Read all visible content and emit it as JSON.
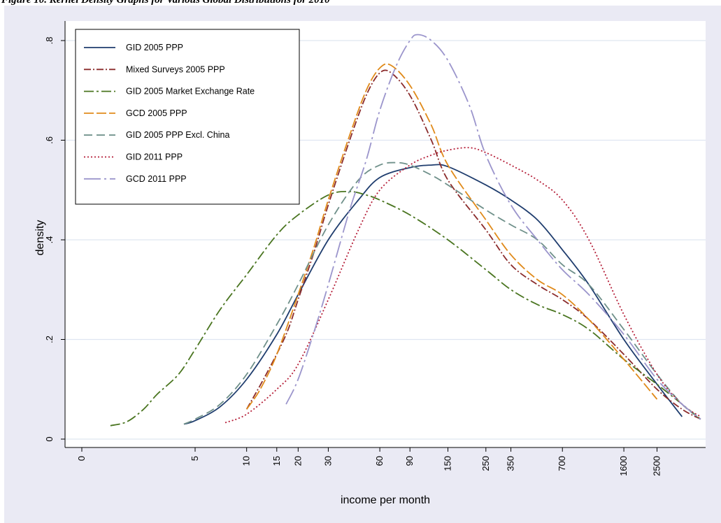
{
  "caption": "Figure 10. Kernel Density Graphs for Various Global Distributions for 2010",
  "chart_data": {
    "type": "line",
    "title": "",
    "xlabel": "income per month",
    "ylabel": "density",
    "x_scale": "log",
    "x_ticks": [
      "0",
      "5",
      "10",
      "15",
      "20",
      "30",
      "60",
      "90",
      "150",
      "250",
      "350",
      "700",
      "1600",
      "2500"
    ],
    "y_ticks": [
      "0",
      ".2",
      ".4",
      ".6",
      ".8"
    ],
    "ylim": [
      0,
      0.8
    ],
    "grid": "horizontal",
    "legend_position": "top-left",
    "series": [
      {
        "name": "GID 2005 PPP",
        "color": "#1f3d6e",
        "dash": "solid",
        "x": [
          4.3,
          5,
          7,
          10,
          15,
          20,
          30,
          45,
          60,
          90,
          120,
          150,
          250,
          350,
          500,
          700,
          1000,
          1600,
          2500,
          3500
        ],
        "y": [
          0.03,
          0.037,
          0.065,
          0.12,
          0.21,
          0.29,
          0.4,
          0.48,
          0.525,
          0.545,
          0.55,
          0.547,
          0.51,
          0.48,
          0.44,
          0.38,
          0.31,
          0.2,
          0.11,
          0.045
        ]
      },
      {
        "name": "Mixed Surveys 2005 PPP",
        "color": "#8b2b2b",
        "dash": "10,3,2,3",
        "x": [
          10,
          13,
          17,
          20,
          25,
          30,
          40,
          50,
          60,
          70,
          90,
          120,
          150,
          250,
          350,
          500,
          700,
          1000,
          1600,
          2500,
          3500,
          4500
        ],
        "y": [
          0.06,
          0.13,
          0.21,
          0.28,
          0.38,
          0.47,
          0.6,
          0.69,
          0.735,
          0.735,
          0.69,
          0.6,
          0.52,
          0.42,
          0.35,
          0.31,
          0.28,
          0.24,
          0.17,
          0.1,
          0.06,
          0.04
        ]
      },
      {
        "name": "GID 2005 Market Exchange Rate",
        "color": "#4a7520",
        "dash": "14,4,3,4",
        "x": [
          1.6,
          2,
          2.5,
          3,
          4,
          5,
          7,
          10,
          15,
          20,
          30,
          40,
          50,
          60,
          90,
          150,
          250,
          350,
          500,
          700,
          1000,
          1600,
          2500,
          3500,
          4500
        ],
        "y": [
          0.027,
          0.035,
          0.06,
          0.09,
          0.13,
          0.18,
          0.26,
          0.33,
          0.41,
          0.45,
          0.49,
          0.497,
          0.49,
          0.48,
          0.45,
          0.4,
          0.34,
          0.3,
          0.27,
          0.25,
          0.22,
          0.16,
          0.11,
          0.07,
          0.04
        ]
      },
      {
        "name": "GCD 2005 PPP",
        "color": "#e08a1a",
        "dash": "14,4",
        "x": [
          10,
          12,
          15,
          20,
          25,
          30,
          40,
          50,
          60,
          70,
          90,
          120,
          150,
          250,
          350,
          500,
          700,
          1000,
          1600,
          2500
        ],
        "y": [
          0.06,
          0.1,
          0.17,
          0.29,
          0.39,
          0.48,
          0.61,
          0.7,
          0.745,
          0.75,
          0.71,
          0.63,
          0.55,
          0.44,
          0.37,
          0.32,
          0.29,
          0.24,
          0.16,
          0.08
        ]
      },
      {
        "name": "GID 2005 PPP Excl. China",
        "color": "#6f908a",
        "dash": "12,6",
        "x": [
          4.3,
          5,
          7,
          10,
          15,
          20,
          30,
          45,
          60,
          75,
          90,
          120,
          150,
          250,
          350,
          500,
          700,
          1000,
          1600,
          2500,
          3500,
          4500
        ],
        "y": [
          0.03,
          0.04,
          0.07,
          0.13,
          0.23,
          0.31,
          0.43,
          0.52,
          0.55,
          0.555,
          0.55,
          0.53,
          0.51,
          0.46,
          0.43,
          0.4,
          0.35,
          0.31,
          0.22,
          0.13,
          0.07,
          0.04
        ]
      },
      {
        "name": "GID 2011 PPP",
        "color": "#b51e38",
        "dash": "2,3",
        "x": [
          7.5,
          10,
          15,
          20,
          30,
          45,
          60,
          90,
          120,
          150,
          200,
          250,
          350,
          500,
          700,
          1000,
          1600,
          2500,
          3500,
          4500
        ],
        "y": [
          0.033,
          0.05,
          0.1,
          0.15,
          0.28,
          0.42,
          0.5,
          0.55,
          0.57,
          0.58,
          0.585,
          0.575,
          0.55,
          0.52,
          0.48,
          0.4,
          0.25,
          0.13,
          0.07,
          0.045
        ]
      },
      {
        "name": "GCD 2011 PPP",
        "color": "#9b95cc",
        "dash": "24,5,3,5",
        "x": [
          17,
          20,
          25,
          30,
          40,
          50,
          60,
          75,
          90,
          100,
          120,
          150,
          200,
          250,
          350,
          500,
          700,
          1000,
          1600,
          2500,
          3500,
          4500
        ],
        "y": [
          0.07,
          0.12,
          0.22,
          0.31,
          0.46,
          0.56,
          0.66,
          0.75,
          0.8,
          0.812,
          0.8,
          0.76,
          0.67,
          0.57,
          0.47,
          0.4,
          0.34,
          0.29,
          0.21,
          0.12,
          0.07,
          0.04
        ]
      }
    ]
  }
}
